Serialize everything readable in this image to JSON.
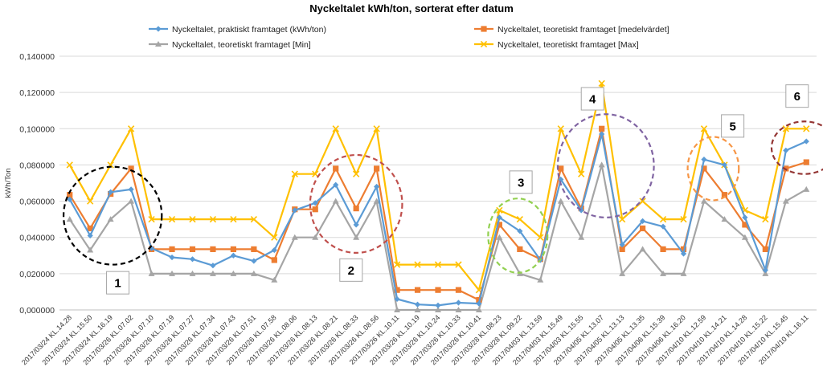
{
  "chart_data": {
    "type": "line",
    "title": "Nyckeltalet kWh/ton, sorterat efter datum",
    "ylabel": "kWh/Ton",
    "xlabel": "",
    "ylim": [
      0,
      0.14
    ],
    "ytick_labels": [
      "0,000000",
      "0,020000",
      "0,040000",
      "0,060000",
      "0,080000",
      "0,100000",
      "0,120000",
      "0,140000"
    ],
    "grid": true,
    "legend_position": "top",
    "categories": [
      "2017/03/24 KL.14.28",
      "2017/03/24 KL.15.50",
      "2017/03/24 KL.16.19",
      "2017/03/26 KL.07.02",
      "2017/03/26 KL.07.10",
      "2017/03/26 KL.07.19",
      "2017/03/26 KL.07.27",
      "2017/03/26 KL.07.34",
      "2017/03/26 KL.07.43",
      "2017/03/26 KL.07.51",
      "2017/03/26 KL.07.58",
      "2017/03/26 KL.08.06",
      "2017/03/26 KL.08.13",
      "2017/03/26 KL.08.21",
      "2017/03/26 KL.08.33",
      "2017/03/26 KL.08.56",
      "2017/03/26 KL.10.11",
      "2017/03/26 KL.10.19",
      "2017/03/26 KL.10.24",
      "2017/03/26 KL.10.33",
      "2017/03/26 KL.10.41",
      "2017/03/28 KL.08.23",
      "2017/03/28 KL.09.22",
      "2017/04/03 KL.13.59",
      "2017/04/03 KL.15.49",
      "2017/04/03 KL.15.55",
      "2017/04/05 KL.13.07",
      "2017/04/05 KL.13.13",
      "2017/04/05 KL.13.35",
      "2017/04/06 KL.15.39",
      "2017/04/06 KL.16.20",
      "2017/04/10 KL.12.59",
      "2017/04/10 KL.14.21",
      "2017/04/10 KL.14.28",
      "2017/04/10 KL.15.22",
      "2017/04/10 KL.15.45",
      "2017/04/10 KL.16.11"
    ],
    "series": [
      {
        "name": "Nyckeltalet, praktiskt framtaget (kWh/ton)",
        "color": "#5B9BD5",
        "marker": "diamond",
        "values": [
          0.061,
          0.041,
          0.065,
          0.0665,
          0.034,
          0.029,
          0.028,
          0.0245,
          0.03,
          0.027,
          0.033,
          0.055,
          0.059,
          0.069,
          0.047,
          0.068,
          0.006,
          0.003,
          0.0025,
          0.004,
          0.0035,
          0.051,
          0.0435,
          0.0275,
          0.072,
          0.055,
          0.097,
          0.036,
          0.049,
          0.046,
          0.031,
          0.083,
          0.08,
          0.051,
          0.022,
          0.088,
          0.093
        ]
      },
      {
        "name": "Nyckeltalet, teoretiskt framtaget [medelvärdet]",
        "color": "#ED7D31",
        "marker": "square",
        "values": [
          0.0635,
          0.045,
          0.064,
          0.078,
          0.0335,
          0.0335,
          0.0335,
          0.0335,
          0.0335,
          0.0335,
          0.0275,
          0.0555,
          0.0555,
          0.078,
          0.056,
          0.078,
          0.011,
          0.011,
          0.011,
          0.011,
          0.0055,
          0.047,
          0.0335,
          0.028,
          0.078,
          0.056,
          0.1,
          0.0335,
          0.045,
          0.0335,
          0.0335,
          0.078,
          0.0635,
          0.047,
          0.0335,
          0.078,
          0.0815
        ]
      },
      {
        "name": "Nyckeltalet, teoretiskt framtaget [Min]",
        "color": "#A5A5A5",
        "marker": "triangle",
        "values": [
          0.05,
          0.033,
          0.05,
          0.06,
          0.02,
          0.02,
          0.02,
          0.02,
          0.02,
          0.02,
          0.0165,
          0.04,
          0.04,
          0.06,
          0.04,
          0.06,
          0.0,
          0.0,
          0.0,
          0.0,
          0.0,
          0.04,
          0.02,
          0.0165,
          0.06,
          0.04,
          0.08,
          0.02,
          0.0335,
          0.02,
          0.02,
          0.06,
          0.05,
          0.04,
          0.02,
          0.06,
          0.0665
        ]
      },
      {
        "name": "Nyckeltalet, teoretiskt framtaget [Max]",
        "color": "#FFC000",
        "marker": "x",
        "values": [
          0.08,
          0.06,
          0.08,
          0.1,
          0.05,
          0.05,
          0.05,
          0.05,
          0.05,
          0.05,
          0.04,
          0.075,
          0.075,
          0.1,
          0.075,
          0.1,
          0.025,
          0.025,
          0.025,
          0.025,
          0.011,
          0.055,
          0.05,
          0.04,
          0.1,
          0.075,
          0.125,
          0.05,
          0.06,
          0.05,
          0.05,
          0.1,
          0.08,
          0.055,
          0.05,
          0.1,
          0.1
        ]
      }
    ],
    "annotations": [
      {
        "label": "1",
        "color": "#000000",
        "center_index": 2.1,
        "center_value": 0.052,
        "rx_index": 2.4,
        "ry_value": 0.027,
        "label_index": 2.35,
        "label_value": 0.015
      },
      {
        "label": "2",
        "color": "#C0504D",
        "center_index": 14.0,
        "center_value": 0.0585,
        "rx_index": 2.25,
        "ry_value": 0.027,
        "label_index": 13.75,
        "label_value": 0.022
      },
      {
        "label": "3",
        "color": "#92D050",
        "center_index": 21.9,
        "center_value": 0.041,
        "rx_index": 1.45,
        "ry_value": 0.0205,
        "label_index": 22.05,
        "label_value": 0.0705
      },
      {
        "label": "4",
        "color": "#8064A2",
        "center_index": 26.2,
        "center_value": 0.0795,
        "rx_index": 2.35,
        "ry_value": 0.0285,
        "label_index": 25.55,
        "label_value": 0.1165
      },
      {
        "label": "5",
        "color": "#F79646",
        "center_index": 31.45,
        "center_value": 0.078,
        "rx_index": 1.25,
        "ry_value": 0.0175,
        "label_index": 32.4,
        "label_value": 0.1015
      },
      {
        "label": "6",
        "color": "#943634",
        "center_index": 35.9,
        "center_value": 0.0895,
        "rx_index": 1.6,
        "ry_value": 0.0145,
        "label_index": 35.55,
        "label_value": 0.118
      }
    ]
  }
}
